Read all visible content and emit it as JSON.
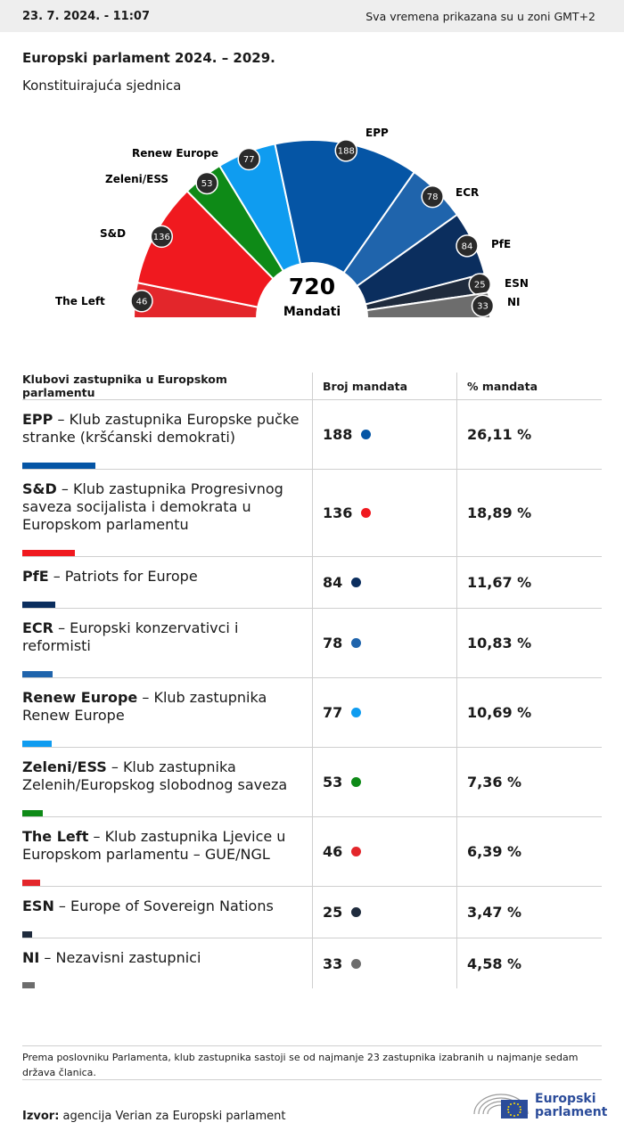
{
  "header": {
    "timestamp": "23. 7. 2024. - 11:07",
    "timezone_note": "Sva vremena prikazana su u zoni GMT+2"
  },
  "title": "Europski parlament 2024. – 2029.",
  "subtitle": "Konstituirajuća sjednica",
  "chart_data": {
    "type": "pie",
    "total": 720,
    "total_label": "Mandati",
    "center_value": "720",
    "order": [
      "The Left",
      "S&D",
      "Zeleni/ESS",
      "Renew Europe",
      "EPP",
      "ECR",
      "PfE",
      "ESN",
      "NI"
    ],
    "groups": [
      {
        "name": "The Left",
        "seats": 46,
        "color": "#e3262b"
      },
      {
        "name": "S&D",
        "seats": 136,
        "color": "#f0191f"
      },
      {
        "name": "Zeleni/ESS",
        "seats": 53,
        "color": "#0e8a17"
      },
      {
        "name": "Renew Europe",
        "seats": 77,
        "color": "#0f9cf0"
      },
      {
        "name": "EPP",
        "seats": 188,
        "color": "#0555a5"
      },
      {
        "name": "ECR",
        "seats": 78,
        "color": "#1f64ac"
      },
      {
        "name": "PfE",
        "seats": 84,
        "color": "#0b2e5e"
      },
      {
        "name": "ESN",
        "seats": 25,
        "color": "#1f2b3d"
      },
      {
        "name": "NI",
        "seats": 33,
        "color": "#6d6d6d"
      }
    ]
  },
  "table": {
    "headers": [
      "Klubovi zastupnika u Europskom parlamentu",
      "Broj mandata",
      "% mandata"
    ],
    "rows": [
      {
        "abbr": "EPP",
        "desc": " – Klub zastupnika Europske pučke stranke (kršćanski demokrati)",
        "seats": "188",
        "pct": "26,11 %",
        "share": 0.2611,
        "color": "#0555a5"
      },
      {
        "abbr": "S&D",
        "desc": " – Klub zastupnika Progresivnog saveza socijalista i demokrata u Europskom parlamentu",
        "seats": "136",
        "pct": "18,89 %",
        "share": 0.1889,
        "color": "#f0191f"
      },
      {
        "abbr": "PfE",
        "desc": " – Patriots for Europe",
        "seats": "84",
        "pct": "11,67 %",
        "share": 0.1167,
        "color": "#0b2e5e"
      },
      {
        "abbr": "ECR",
        "desc": " – Europski konzervativci i reformisti",
        "seats": "78",
        "pct": "10,83 %",
        "share": 0.1083,
        "color": "#1f64ac"
      },
      {
        "abbr": "Renew Europe",
        "desc": " – Klub zastupnika Renew Europe",
        "seats": "77",
        "pct": "10,69 %",
        "share": 0.1069,
        "color": "#0f9cf0"
      },
      {
        "abbr": "Zeleni/ESS",
        "desc": " – Klub zastupnika Zelenih/Europskog slobodnog saveza",
        "seats": "53",
        "pct": "7,36 %",
        "share": 0.0736,
        "color": "#0e8a17"
      },
      {
        "abbr": "The Left",
        "desc": " – Klub zastupnika Ljevice u Europskom parlamentu – GUE/NGL",
        "seats": "46",
        "pct": "6,39 %",
        "share": 0.0639,
        "color": "#e3262b"
      },
      {
        "abbr": "ESN",
        "desc": " – Europe of Sovereign Nations",
        "seats": "25",
        "pct": "3,47 %",
        "share": 0.0347,
        "color": "#1f2b3d"
      },
      {
        "abbr": "NI",
        "desc": " – Nezavisni zastupnici",
        "seats": "33",
        "pct": "4,58 %",
        "share": 0.0458,
        "color": "#6d6d6d"
      }
    ]
  },
  "footnote": "Prema poslovniku Parlamenta, klub zastupnika sastoji se od najmanje 23 zastupnika izabranih u najmanje sedam država članica.",
  "source": {
    "label": "Izvor:",
    "text": " agencija Verian za Europski parlament"
  },
  "logo": {
    "line1": "Europski",
    "line2": "parlament"
  }
}
